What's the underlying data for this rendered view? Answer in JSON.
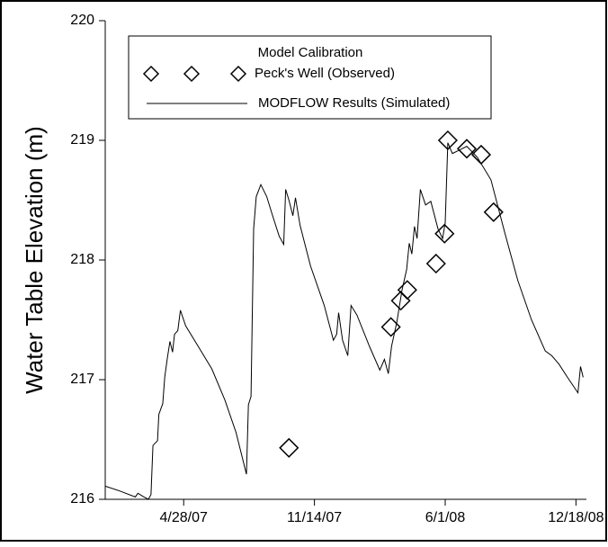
{
  "chart_data": {
    "type": "line",
    "y_label": "Water Table Elevation (m)",
    "legend_title": "Model Calibration",
    "xlim": [
      "2006-12-29",
      "2009-01-03"
    ],
    "xticks": [
      {
        "value": "2007-04-28",
        "label": "4/28/07"
      },
      {
        "value": "2007-11-14",
        "label": "11/14/07"
      },
      {
        "value": "2008-06-01",
        "label": "6/1/08"
      },
      {
        "value": "2008-12-18",
        "label": "12/18/08"
      }
    ],
    "ylim": [
      216,
      220
    ],
    "yticks": [
      216,
      217,
      218,
      219,
      220
    ],
    "series": [
      {
        "name": "Peck's Well (Observed)",
        "color": "#000000",
        "marker": "diamond",
        "x": [
          "2007-10-06",
          "2008-03-10",
          "2008-03-25",
          "2008-04-04",
          "2008-05-18",
          "2008-05-31",
          "2008-06-05",
          "2008-07-04",
          "2008-07-26",
          "2008-08-14"
        ],
        "values": [
          216.43,
          217.44,
          217.66,
          217.75,
          217.97,
          218.22,
          219.0,
          218.93,
          218.88,
          218.4
        ]
      },
      {
        "name": "MODFLOW Results (Simulated)",
        "color": "#000000",
        "marker": "line",
        "x": [
          "2006-12-29",
          "2007-01-20",
          "2007-02-13",
          "2007-02-17",
          "2007-02-26",
          "2007-03-05",
          "2007-03-09",
          "2007-03-12",
          "2007-03-19",
          "2007-03-21",
          "2007-03-27",
          "2007-03-30",
          "2007-04-03",
          "2007-04-07",
          "2007-04-11",
          "2007-04-14",
          "2007-04-19",
          "2007-04-23",
          "2007-05-01",
          "2007-05-20",
          "2007-06-10",
          "2007-06-30",
          "2007-07-17",
          "2007-08-02",
          "2007-08-05",
          "2007-08-09",
          "2007-08-13",
          "2007-08-17",
          "2007-08-24",
          "2007-09-02",
          "2007-09-11",
          "2007-09-21",
          "2007-09-28",
          "2007-10-01",
          "2007-10-06",
          "2007-10-12",
          "2007-10-16",
          "2007-10-23",
          "2007-11-08",
          "2007-11-29",
          "2007-12-13",
          "2007-12-18",
          "2007-12-21",
          "2007-12-27",
          "2008-01-04",
          "2008-01-09",
          "2008-01-18",
          "2008-02-06",
          "2008-02-22",
          "2008-02-29",
          "2008-03-06",
          "2008-03-11",
          "2008-03-19",
          "2008-03-27",
          "2008-04-03",
          "2008-04-07",
          "2008-04-11",
          "2008-04-15",
          "2008-04-19",
          "2008-04-24",
          "2008-05-02",
          "2008-05-10",
          "2008-05-21",
          "2008-05-28",
          "2008-06-01",
          "2008-06-05",
          "2008-06-12",
          "2008-06-23",
          "2008-07-04",
          "2008-07-20",
          "2008-08-10",
          "2008-08-31",
          "2008-09-20",
          "2008-10-11",
          "2008-11-01",
          "2008-11-11",
          "2008-11-22",
          "2008-12-05",
          "2008-12-21",
          "2008-12-25",
          "2008-12-29"
        ],
        "values": [
          216.11,
          216.07,
          216.02,
          216.05,
          216.02,
          216.0,
          216.04,
          216.45,
          216.49,
          216.71,
          216.8,
          217.02,
          217.18,
          217.32,
          217.23,
          217.38,
          217.41,
          217.58,
          217.45,
          217.28,
          217.09,
          216.83,
          216.56,
          216.21,
          216.79,
          216.86,
          218.26,
          218.53,
          218.63,
          218.53,
          218.37,
          218.2,
          218.13,
          218.59,
          218.5,
          218.37,
          218.52,
          218.29,
          217.95,
          217.62,
          217.33,
          217.38,
          217.56,
          217.33,
          217.2,
          217.62,
          217.54,
          217.28,
          217.08,
          217.17,
          217.05,
          217.28,
          217.48,
          217.75,
          217.92,
          218.14,
          218.05,
          218.28,
          218.18,
          218.59,
          218.46,
          218.49,
          218.26,
          218.18,
          218.31,
          218.98,
          218.89,
          218.92,
          218.95,
          218.86,
          218.67,
          218.23,
          217.83,
          217.5,
          217.24,
          217.2,
          217.13,
          217.02,
          216.89,
          217.11,
          217.02
        ]
      }
    ]
  }
}
